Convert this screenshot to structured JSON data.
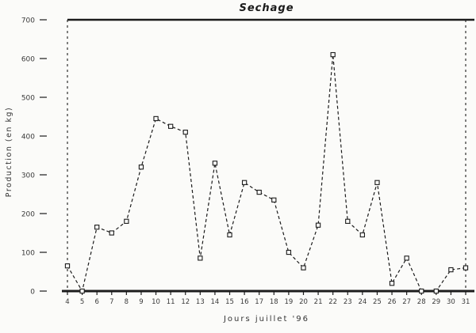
{
  "page": {
    "background": "#fbfbf9",
    "ink_color": "#1c1c1c",
    "label_color": "#3a3a3a"
  },
  "chart_data": {
    "type": "line",
    "title": "Sechage",
    "xlabel": "Jours juillet '96",
    "ylabel": "Production (en kg)",
    "x": [
      4,
      5,
      6,
      7,
      8,
      9,
      10,
      11,
      12,
      13,
      14,
      15,
      16,
      17,
      18,
      19,
      20,
      21,
      22,
      23,
      24,
      25,
      26,
      27,
      28,
      29,
      30,
      31
    ],
    "values": [
      65,
      0,
      165,
      150,
      180,
      320,
      445,
      425,
      410,
      85,
      330,
      145,
      280,
      255,
      235,
      100,
      60,
      170,
      610,
      180,
      145,
      280,
      20,
      85,
      0,
      0,
      55,
      60
    ],
    "ylim": [
      0,
      700
    ],
    "yticks": [
      0,
      100,
      200,
      300,
      400,
      500,
      600,
      700
    ],
    "grid": false,
    "legend": null,
    "line_style": "dashed",
    "marker": "open-square",
    "color": "#1c1c1c",
    "plot_border": "dashed-left-right-solid-top-bottom"
  }
}
